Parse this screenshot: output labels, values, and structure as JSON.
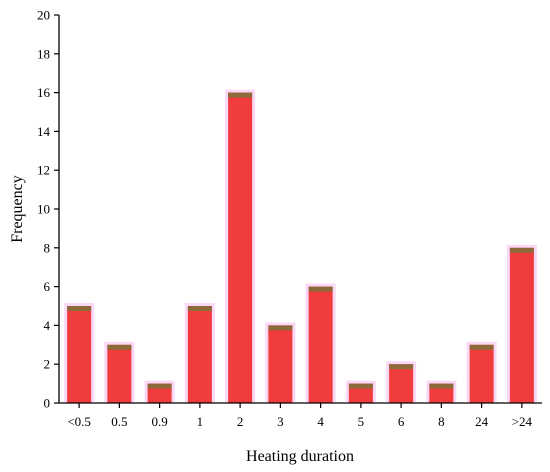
{
  "chart_data": {
    "type": "bar",
    "xlabel": "Heating duration",
    "ylabel": "Frequency",
    "categories": [
      "<0.5",
      "0.5",
      "0.9",
      "1",
      "2",
      "3",
      "4",
      "5",
      "6",
      "8",
      "24",
      ">24"
    ],
    "values": [
      5,
      3,
      1,
      5,
      16,
      4,
      6,
      1,
      2,
      1,
      3,
      8
    ],
    "ylim": [
      0,
      20
    ],
    "yticks": [
      0,
      2,
      4,
      6,
      8,
      10,
      12,
      14,
      16,
      18,
      20
    ],
    "grid": false,
    "legend": "none"
  },
  "colors": {
    "bar_fill": "#f03c3c",
    "bar_cap": "#8c6a3a",
    "bar_glow": "#f7b8ec",
    "axis": "#000000"
  }
}
